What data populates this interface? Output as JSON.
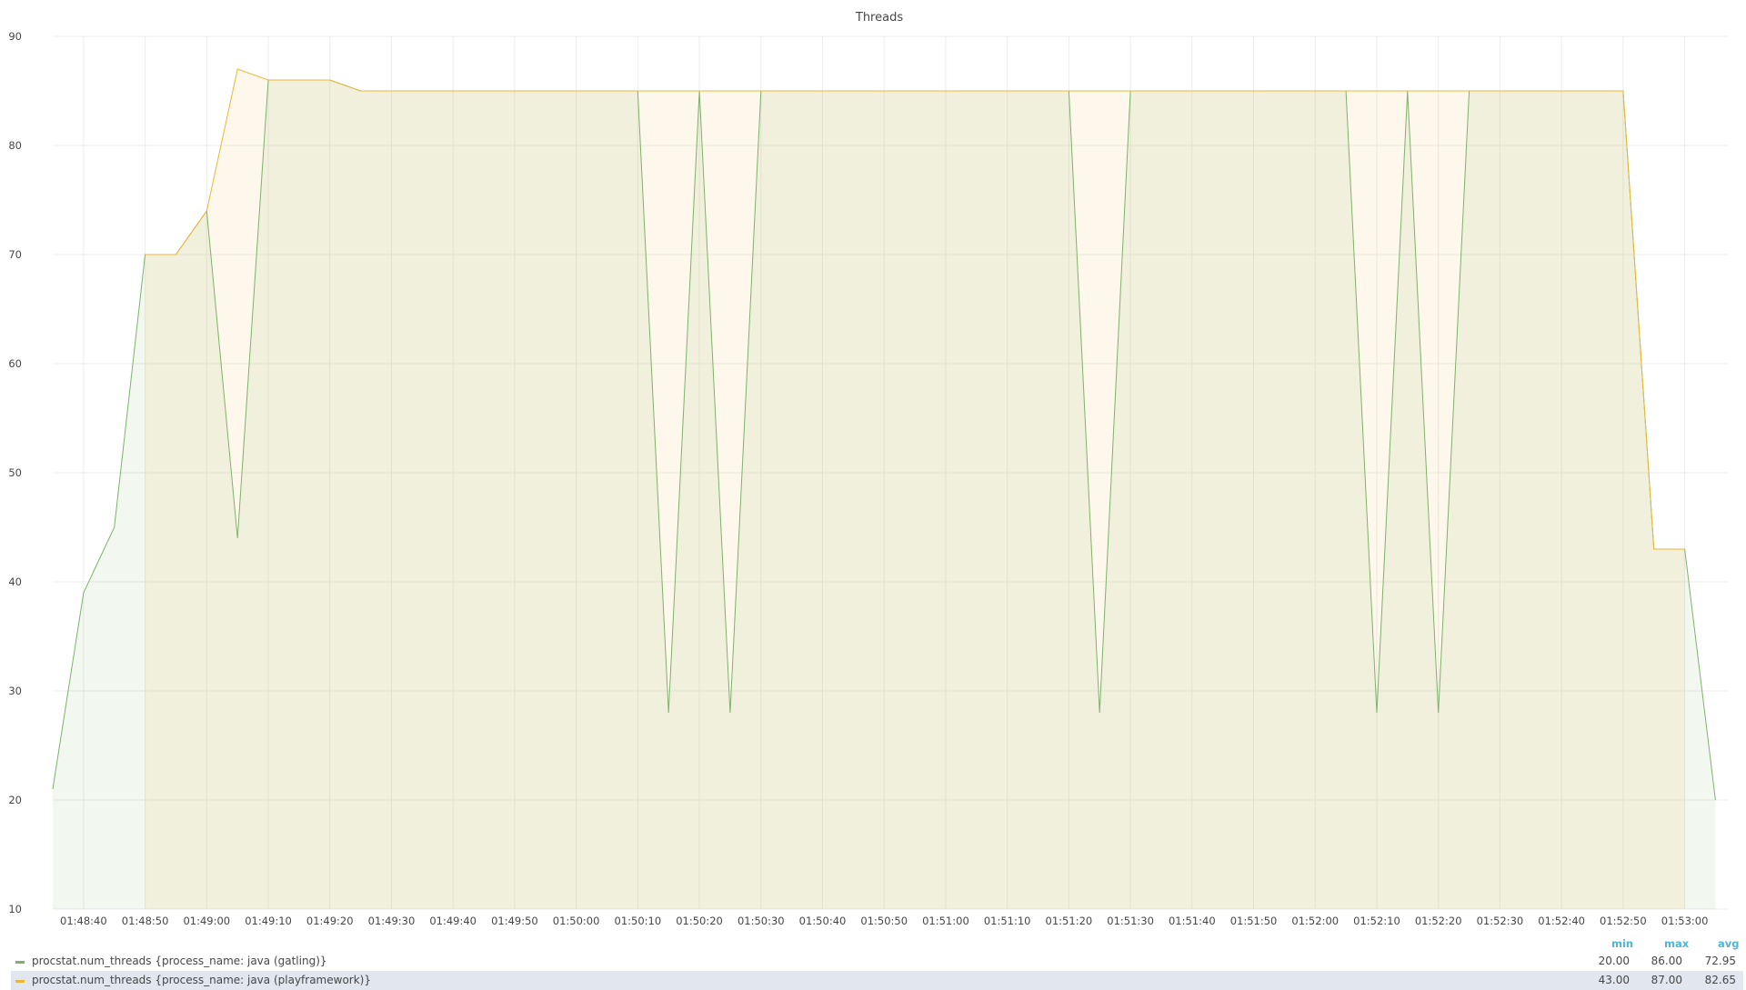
{
  "panel": {
    "title": "Threads"
  },
  "colors": {
    "gatling": "#7eb26d",
    "playframework": "#eab839",
    "grid": "#ececec",
    "tick_text": "#464646",
    "legend_header": "#52b4d7"
  },
  "legend": {
    "headers": {
      "min": "min",
      "max": "max",
      "avg": "avg"
    },
    "rows": [
      {
        "name": "procstat.num_threads {process_name: java (gatling)}",
        "min": "20.00",
        "max": "86.00",
        "avg": "72.95"
      },
      {
        "name": "procstat.num_threads {process_name: java (playframework)}",
        "min": "43.00",
        "max": "87.00",
        "avg": "82.65"
      }
    ]
  },
  "chart_data": {
    "type": "area",
    "title": "Threads",
    "ylim": [
      10,
      90
    ],
    "yticks": [
      "10",
      "20",
      "30",
      "40",
      "50",
      "60",
      "70",
      "80",
      "90"
    ],
    "xticks": [
      "01:48:40",
      "01:48:50",
      "01:49:00",
      "01:49:10",
      "01:49:20",
      "01:49:30",
      "01:49:40",
      "01:49:50",
      "01:50:00",
      "01:50:10",
      "01:50:20",
      "01:50:30",
      "01:50:40",
      "01:50:50",
      "01:51:00",
      "01:51:10",
      "01:51:20",
      "01:51:30",
      "01:51:40",
      "01:51:50",
      "01:52:00",
      "01:52:10",
      "01:52:20",
      "01:52:30",
      "01:52:40",
      "01:52:50",
      "01:53:00"
    ],
    "grid": true,
    "legend_position": "bottom",
    "x": [
      "01:48:35",
      "01:48:40",
      "01:48:45",
      "01:48:50",
      "01:48:55",
      "01:49:00",
      "01:49:05",
      "01:49:10",
      "01:49:15",
      "01:49:20",
      "01:49:25",
      "01:49:30",
      "01:49:35",
      "01:49:40",
      "01:49:45",
      "01:49:50",
      "01:49:55",
      "01:50:00",
      "01:50:05",
      "01:50:10",
      "01:50:15",
      "01:50:20",
      "01:50:25",
      "01:50:30",
      "01:50:35",
      "01:50:40",
      "01:50:45",
      "01:50:50",
      "01:50:55",
      "01:51:00",
      "01:51:05",
      "01:51:10",
      "01:51:15",
      "01:51:20",
      "01:51:25",
      "01:51:30",
      "01:51:35",
      "01:51:40",
      "01:51:45",
      "01:51:50",
      "01:51:55",
      "01:52:00",
      "01:52:05",
      "01:52:10",
      "01:52:15",
      "01:52:20",
      "01:52:25",
      "01:52:30",
      "01:52:35",
      "01:52:40",
      "01:52:45",
      "01:52:50",
      "01:52:55",
      "01:53:00",
      "01:53:05"
    ],
    "series": [
      {
        "name": "procstat.num_threads {process_name: java (gatling)}",
        "color": "#7eb26d",
        "values": [
          21,
          39,
          45,
          70,
          70,
          74,
          44,
          86,
          86,
          86,
          85,
          85,
          85,
          85,
          85,
          85,
          85,
          85,
          85,
          85,
          28,
          85,
          28,
          85,
          85,
          85,
          85,
          85,
          85,
          85,
          85,
          85,
          85,
          85,
          28,
          85,
          85,
          85,
          85,
          85,
          85,
          85,
          85,
          28,
          85,
          28,
          85,
          85,
          85,
          85,
          85,
          85,
          43,
          43,
          20
        ]
      },
      {
        "name": "procstat.num_threads {process_name: java (playframework)}",
        "color": "#eab839",
        "values": [
          null,
          null,
          null,
          70,
          70,
          74,
          87,
          86,
          86,
          86,
          85,
          85,
          85,
          85,
          85,
          85,
          85,
          85,
          85,
          85,
          85,
          85,
          85,
          85,
          85,
          85,
          85,
          85,
          85,
          85,
          85,
          85,
          85,
          85,
          85,
          85,
          85,
          85,
          85,
          85,
          85,
          85,
          85,
          85,
          85,
          85,
          85,
          85,
          85,
          85,
          85,
          85,
          43,
          43,
          null
        ]
      }
    ]
  }
}
